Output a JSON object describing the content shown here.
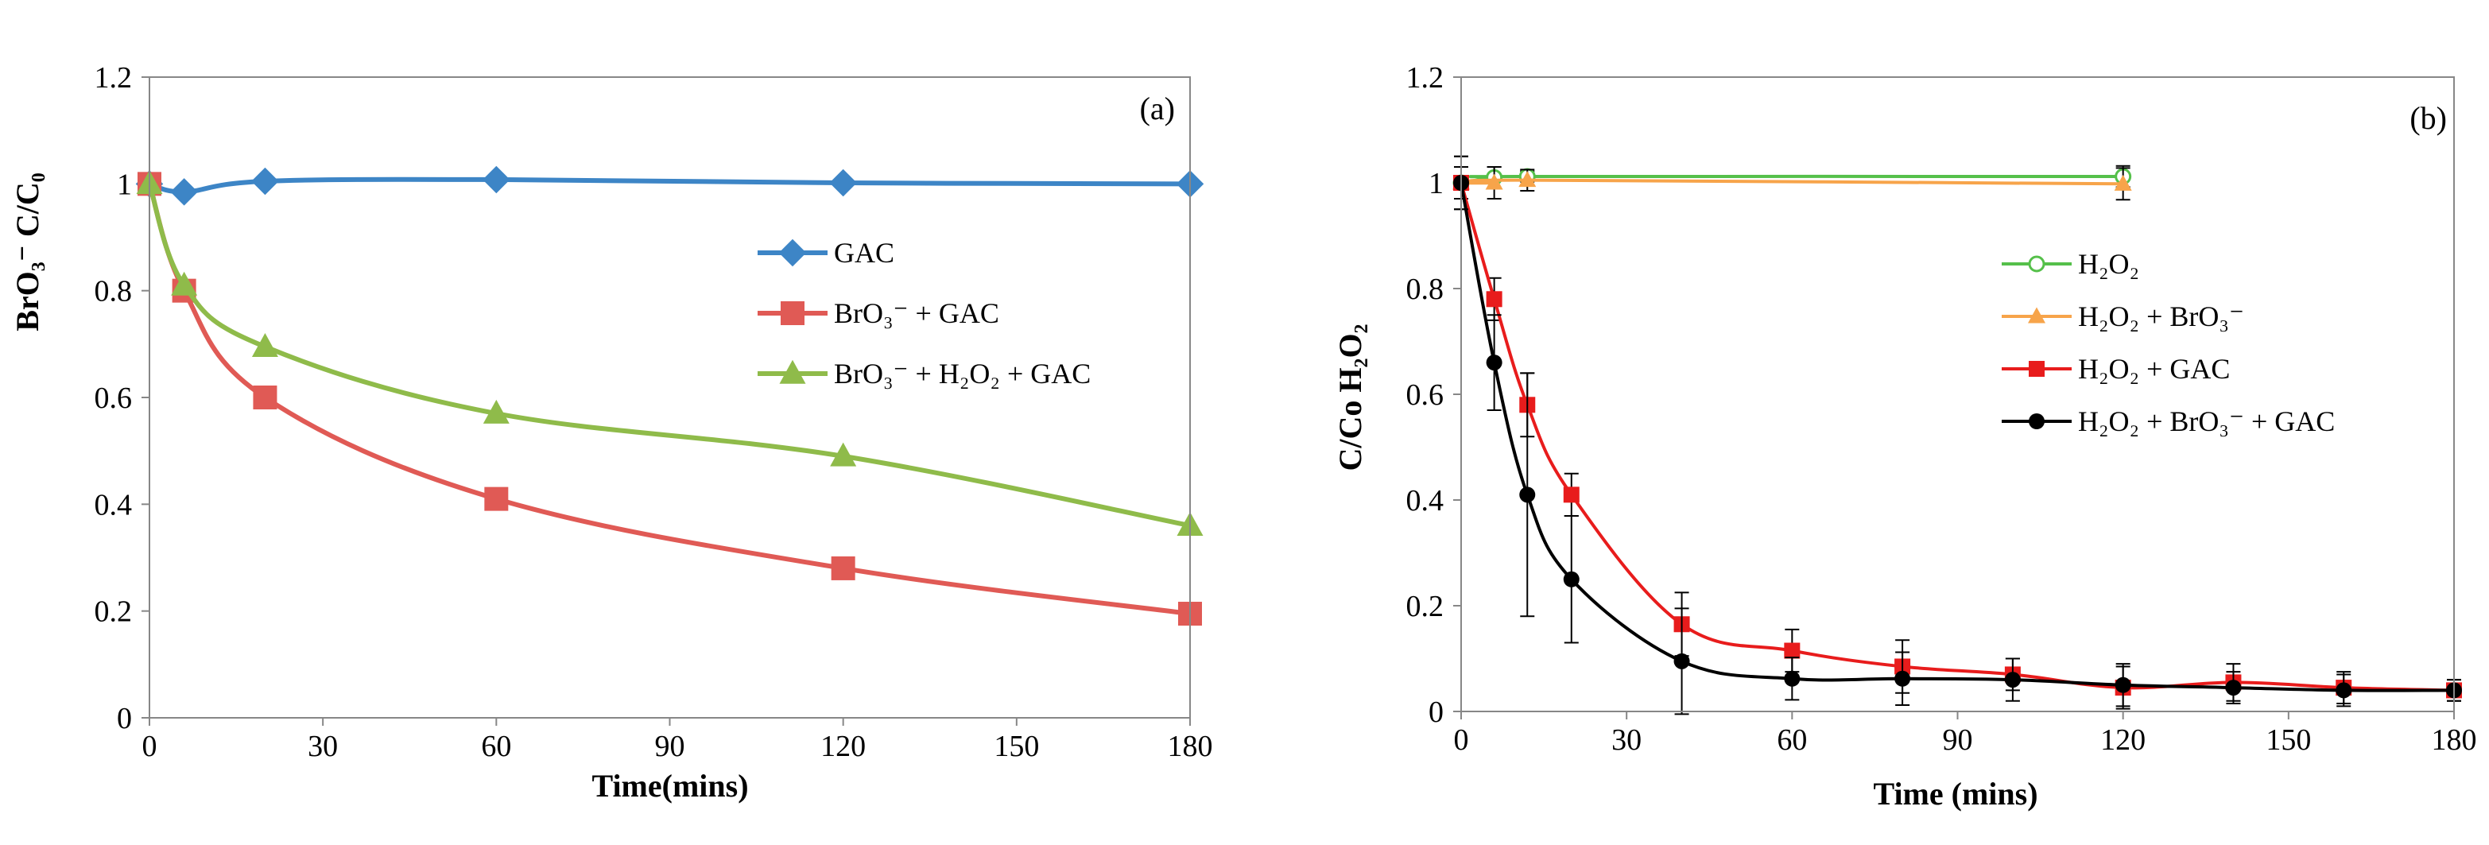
{
  "chart_data": [
    {
      "type": "line",
      "panel_label": "(a)",
      "title": "",
      "xlabel": "Time(mins)",
      "ylabel": "BrO₃⁻  C/C₀",
      "xlim": [
        0,
        180
      ],
      "ylim": [
        0,
        1.2
      ],
      "xticks": [
        "0",
        "30",
        "60",
        "90",
        "120",
        "150",
        "180"
      ],
      "yticks": [
        "0",
        "0.2",
        "0.4",
        "0.6",
        "0.8",
        "1",
        "1.2"
      ],
      "grid": false,
      "legend_position": "right",
      "series": [
        {
          "name": "GAC",
          "color": "#3d85c6",
          "marker": "diamond",
          "x": [
            0,
            6,
            20,
            60,
            120,
            180
          ],
          "y": [
            1.0,
            0.985,
            1.005,
            1.008,
            1.002,
            1.0
          ]
        },
        {
          "name": "BrO₃⁻ + GAC",
          "color": "#e05a55",
          "marker": "square",
          "x": [
            0,
            6,
            20,
            60,
            120,
            180
          ],
          "y": [
            1.0,
            0.8,
            0.6,
            0.41,
            0.28,
            0.195
          ]
        },
        {
          "name": "BrO₃⁻ + H₂O₂ + GAC",
          "color": "#8fbb4a",
          "marker": "triangle",
          "x": [
            0,
            6,
            20,
            60,
            120,
            180
          ],
          "y": [
            1.0,
            0.81,
            0.695,
            0.57,
            0.49,
            0.36
          ]
        }
      ]
    },
    {
      "type": "line",
      "panel_label": "(b)",
      "title": "",
      "xlabel": "Time (mins)",
      "ylabel": "C/Co   H₂O₂",
      "xlim": [
        0,
        180
      ],
      "ylim": [
        0,
        1.2
      ],
      "xticks": [
        "0",
        "30",
        "60",
        "90",
        "120",
        "150",
        "180"
      ],
      "yticks": [
        "0",
        "0.2",
        "0.4",
        "0.6",
        "0.8",
        "1",
        "1.2"
      ],
      "grid": false,
      "legend_position": "right",
      "series": [
        {
          "name": "H₂O₂",
          "color": "#55c04a",
          "marker": "circle-open",
          "x": [
            0,
            6,
            12,
            120
          ],
          "y": [
            1.0,
            1.01,
            1.012,
            1.012
          ],
          "err": [
            0.03,
            0.02,
            0.01,
            0.02
          ]
        },
        {
          "name": "H₂O₂ + BrO₃⁻",
          "color": "#f7a44a",
          "marker": "triangle",
          "x": [
            0,
            6,
            12,
            120
          ],
          "y": [
            1.0,
            1.0,
            1.005,
            0.998
          ],
          "err": [
            0.03,
            0.03,
            0.02,
            0.03
          ]
        },
        {
          "name": "H₂O₂ + GAC",
          "color": "#e81c1c",
          "marker": "square",
          "x": [
            0,
            6,
            12,
            20,
            40,
            60,
            80,
            100,
            120,
            140,
            160,
            180
          ],
          "y": [
            1.0,
            0.78,
            0.58,
            0.41,
            0.165,
            0.115,
            0.085,
            0.07,
            0.045,
            0.055,
            0.045,
            0.04
          ],
          "err": [
            0.05,
            0.04,
            0.06,
            0.04,
            0.06,
            0.04,
            0.05,
            0.03,
            0.04,
            0.035,
            0.03,
            0.02
          ]
        },
        {
          "name": "H₂O₂ + BrO₃⁻ + GAC",
          "color": "#000000",
          "marker": "circle",
          "x": [
            0,
            6,
            12,
            20,
            40,
            60,
            80,
            100,
            120,
            140,
            160,
            180
          ],
          "y": [
            1.0,
            0.66,
            0.41,
            0.25,
            0.095,
            0.062,
            0.062,
            0.06,
            0.05,
            0.045,
            0.04,
            0.04
          ],
          "err": [
            0.05,
            0.09,
            0.23,
            0.12,
            0.1,
            0.04,
            0.05,
            0.04,
            0.04,
            0.03,
            0.03,
            0.02
          ]
        }
      ]
    }
  ]
}
